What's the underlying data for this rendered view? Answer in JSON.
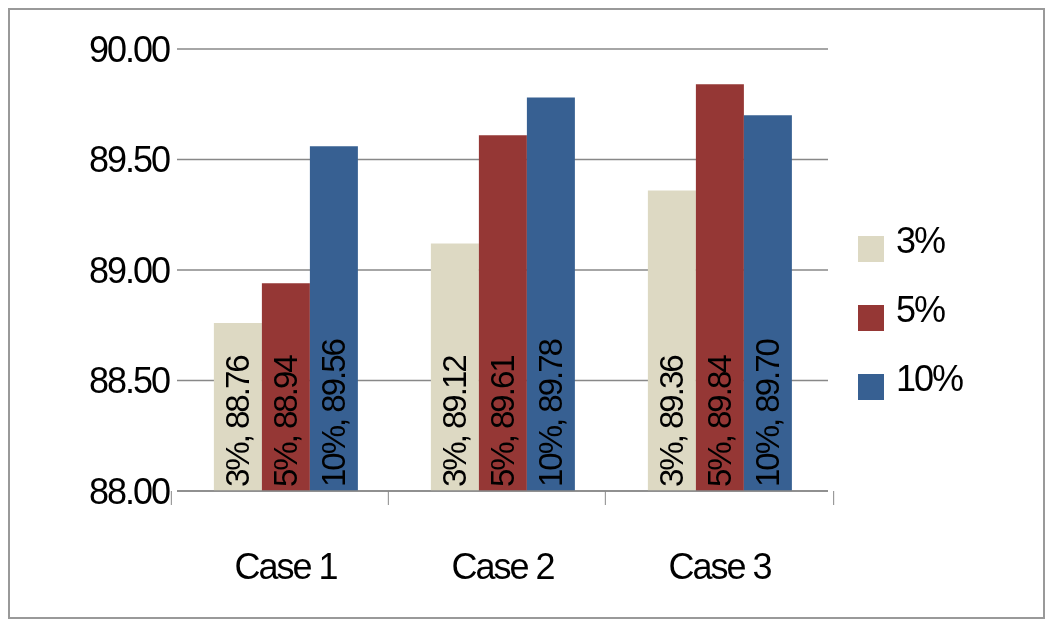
{
  "chart_data": {
    "type": "bar",
    "categories": [
      "Case 1",
      "Case 2",
      "Case 3"
    ],
    "series": [
      {
        "name": "3%",
        "color": "#ddd9c3",
        "values": [
          88.76,
          89.12,
          89.36
        ],
        "value_labels": [
          "3%, 88.76",
          "3%, 89.12",
          "3%, 89.36"
        ]
      },
      {
        "name": "5%",
        "color": "#953735",
        "values": [
          88.94,
          89.61,
          89.84
        ],
        "value_labels": [
          "5%, 88.94",
          "5%, 89.61",
          "5%, 89.84"
        ]
      },
      {
        "name": "10%",
        "color": "#376092",
        "values": [
          89.56,
          89.78,
          89.7
        ],
        "value_labels": [
          "10%, 89.56",
          "10%, 89.78",
          "10%, 89.70"
        ]
      }
    ],
    "ylim": [
      88,
      90
    ],
    "yticks": [
      {
        "value": 88,
        "label": "88.00"
      },
      {
        "value": 88.5,
        "label": "88.50"
      },
      {
        "value": 89,
        "label": "89.00"
      },
      {
        "value": 89.5,
        "label": "89.50"
      },
      {
        "value": 90,
        "label": "90.00"
      }
    ],
    "grid": "y",
    "legend": "right"
  }
}
